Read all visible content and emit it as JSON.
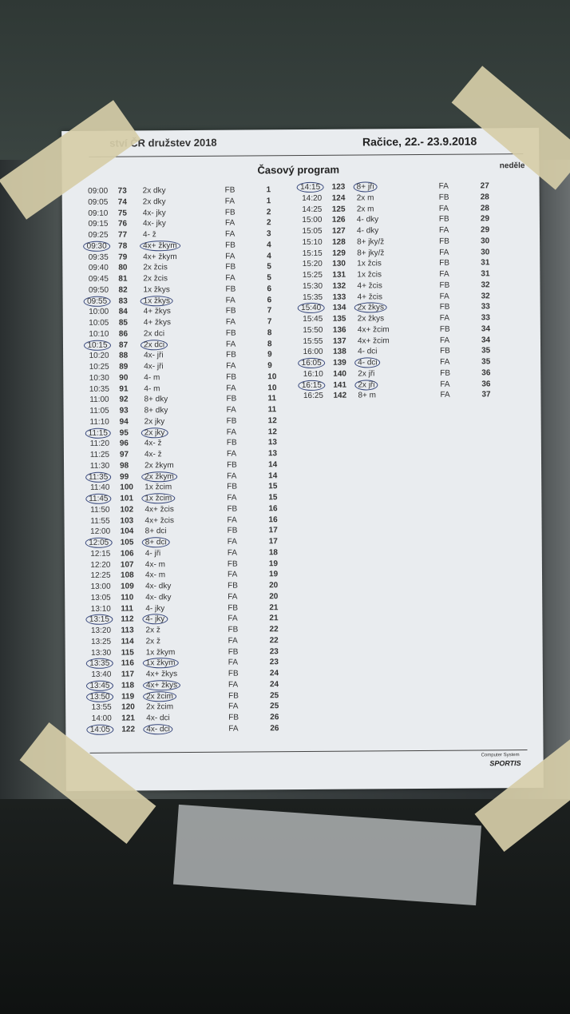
{
  "header": {
    "event": "ství ČR družstev 2018",
    "place_date": "Račice,  22.- 23.9.2018",
    "title": "Časový program",
    "day": "neděle"
  },
  "footer": {
    "system": "Computer System",
    "logo": "SPORTIS"
  },
  "left_rows": [
    {
      "time": "09:00",
      "no": "73",
      "cat": "2x dky",
      "lane": "FB",
      "race": "1",
      "circled": false
    },
    {
      "time": "09:05",
      "no": "74",
      "cat": "2x dky",
      "lane": "FA",
      "race": "1",
      "circled": false
    },
    {
      "time": "09:10",
      "no": "75",
      "cat": "4x- jky",
      "lane": "FB",
      "race": "2",
      "circled": false
    },
    {
      "time": "09:15",
      "no": "76",
      "cat": "4x- jky",
      "lane": "FA",
      "race": "2",
      "circled": false
    },
    {
      "time": "09:25",
      "no": "77",
      "cat": "4- ž",
      "lane": "FA",
      "race": "3",
      "circled": false
    },
    {
      "time": "09:30",
      "no": "78",
      "cat": "4x+ žkym",
      "lane": "FB",
      "race": "4",
      "circled": true
    },
    {
      "time": "09:35",
      "no": "79",
      "cat": "4x+ žkym",
      "lane": "FA",
      "race": "4",
      "circled": false
    },
    {
      "time": "09:40",
      "no": "80",
      "cat": "2x žcis",
      "lane": "FB",
      "race": "5",
      "circled": false
    },
    {
      "time": "09:45",
      "no": "81",
      "cat": "2x žcis",
      "lane": "FA",
      "race": "5",
      "circled": false
    },
    {
      "time": "09:50",
      "no": "82",
      "cat": "1x žkys",
      "lane": "FB",
      "race": "6",
      "circled": false
    },
    {
      "time": "09:55",
      "no": "83",
      "cat": "1x žkys",
      "lane": "FA",
      "race": "6",
      "circled": true
    },
    {
      "time": "10:00",
      "no": "84",
      "cat": "4+ žkys",
      "lane": "FB",
      "race": "7",
      "circled": false
    },
    {
      "time": "10:05",
      "no": "85",
      "cat": "4+ žkys",
      "lane": "FA",
      "race": "7",
      "circled": false
    },
    {
      "time": "10:10",
      "no": "86",
      "cat": "2x dci",
      "lane": "FB",
      "race": "8",
      "circled": false
    },
    {
      "time": "10:15",
      "no": "87",
      "cat": "2x dci",
      "lane": "FA",
      "race": "8",
      "circled": true
    },
    {
      "time": "10:20",
      "no": "88",
      "cat": "4x- jři",
      "lane": "FB",
      "race": "9",
      "circled": false
    },
    {
      "time": "10:25",
      "no": "89",
      "cat": "4x- jři",
      "lane": "FA",
      "race": "9",
      "circled": false
    },
    {
      "time": "10:30",
      "no": "90",
      "cat": "4- m",
      "lane": "FB",
      "race": "10",
      "circled": false
    },
    {
      "time": "10:35",
      "no": "91",
      "cat": "4- m",
      "lane": "FA",
      "race": "10",
      "circled": false
    },
    {
      "time": "11:00",
      "no": "92",
      "cat": "8+ dky",
      "lane": "FB",
      "race": "11",
      "circled": false
    },
    {
      "time": "11:05",
      "no": "93",
      "cat": "8+ dky",
      "lane": "FA",
      "race": "11",
      "circled": false
    },
    {
      "time": "11:10",
      "no": "94",
      "cat": "2x jky",
      "lane": "FB",
      "race": "12",
      "circled": false
    },
    {
      "time": "11:15",
      "no": "95",
      "cat": "2x jky",
      "lane": "FA",
      "race": "12",
      "circled": true
    },
    {
      "time": "11:20",
      "no": "96",
      "cat": "4x- ž",
      "lane": "FB",
      "race": "13",
      "circled": false
    },
    {
      "time": "11:25",
      "no": "97",
      "cat": "4x- ž",
      "lane": "FA",
      "race": "13",
      "circled": false
    },
    {
      "time": "11:30",
      "no": "98",
      "cat": "2x žkym",
      "lane": "FB",
      "race": "14",
      "circled": false
    },
    {
      "time": "11:35",
      "no": "99",
      "cat": "2x žkym",
      "lane": "FA",
      "race": "14",
      "circled": true
    },
    {
      "time": "11:40",
      "no": "100",
      "cat": "1x žcim",
      "lane": "FB",
      "race": "15",
      "circled": false
    },
    {
      "time": "11:45",
      "no": "101",
      "cat": "1x žcim",
      "lane": "FA",
      "race": "15",
      "circled": true
    },
    {
      "time": "11:50",
      "no": "102",
      "cat": "4x+ žcis",
      "lane": "FB",
      "race": "16",
      "circled": false
    },
    {
      "time": "11:55",
      "no": "103",
      "cat": "4x+ žcis",
      "lane": "FA",
      "race": "16",
      "circled": false
    },
    {
      "time": "12:00",
      "no": "104",
      "cat": "8+ dci",
      "lane": "FB",
      "race": "17",
      "circled": false
    },
    {
      "time": "12:05",
      "no": "105",
      "cat": "8+ dci",
      "lane": "FA",
      "race": "17",
      "circled": true
    },
    {
      "time": "12:15",
      "no": "106",
      "cat": "4- jři",
      "lane": "FA",
      "race": "18",
      "circled": false
    },
    {
      "time": "12:20",
      "no": "107",
      "cat": "4x- m",
      "lane": "FB",
      "race": "19",
      "circled": false
    },
    {
      "time": "12:25",
      "no": "108",
      "cat": "4x- m",
      "lane": "FA",
      "race": "19",
      "circled": false
    },
    {
      "time": "13:00",
      "no": "109",
      "cat": "4x- dky",
      "lane": "FB",
      "race": "20",
      "circled": false
    },
    {
      "time": "13:05",
      "no": "110",
      "cat": "4x- dky",
      "lane": "FA",
      "race": "20",
      "circled": false
    },
    {
      "time": "13:10",
      "no": "111",
      "cat": "4- jky",
      "lane": "FB",
      "race": "21",
      "circled": false
    },
    {
      "time": "13:15",
      "no": "112",
      "cat": "4- jky",
      "lane": "FA",
      "race": "21",
      "circled": true
    },
    {
      "time": "13:20",
      "no": "113",
      "cat": "2x ž",
      "lane": "FB",
      "race": "22",
      "circled": false
    },
    {
      "time": "13:25",
      "no": "114",
      "cat": "2x ž",
      "lane": "FA",
      "race": "22",
      "circled": false
    },
    {
      "time": "13:30",
      "no": "115",
      "cat": "1x žkym",
      "lane": "FB",
      "race": "23",
      "circled": false
    },
    {
      "time": "13:35",
      "no": "116",
      "cat": "1x žkym",
      "lane": "FA",
      "race": "23",
      "circled": true
    },
    {
      "time": "13:40",
      "no": "117",
      "cat": "4x+ žkys",
      "lane": "FB",
      "race": "24",
      "circled": false
    },
    {
      "time": "13:45",
      "no": "118",
      "cat": "4x+ žkys",
      "lane": "FA",
      "race": "24",
      "circled": true
    },
    {
      "time": "13:50",
      "no": "119",
      "cat": "2x žcim",
      "lane": "FB",
      "race": "25",
      "circled": true
    },
    {
      "time": "13:55",
      "no": "120",
      "cat": "2x žcim",
      "lane": "FA",
      "race": "25",
      "circled": false
    },
    {
      "time": "14:00",
      "no": "121",
      "cat": "4x- dci",
      "lane": "FB",
      "race": "26",
      "circled": false
    },
    {
      "time": "14:05",
      "no": "122",
      "cat": "4x- dci",
      "lane": "FA",
      "race": "26",
      "circled": true
    }
  ],
  "right_rows": [
    {
      "time": "14:15",
      "no": "123",
      "cat": "8+ jři",
      "lane": "FA",
      "race": "27",
      "circled": true
    },
    {
      "time": "14:20",
      "no": "124",
      "cat": "2x m",
      "lane": "FB",
      "race": "28",
      "circled": false
    },
    {
      "time": "14:25",
      "no": "125",
      "cat": "2x m",
      "lane": "FA",
      "race": "28",
      "circled": false
    },
    {
      "time": "15:00",
      "no": "126",
      "cat": "4- dky",
      "lane": "FB",
      "race": "29",
      "circled": false
    },
    {
      "time": "15:05",
      "no": "127",
      "cat": "4- dky",
      "lane": "FA",
      "race": "29",
      "circled": false
    },
    {
      "time": "15:10",
      "no": "128",
      "cat": "8+ jky/ž",
      "lane": "FB",
      "race": "30",
      "circled": false
    },
    {
      "time": "15:15",
      "no": "129",
      "cat": "8+ jky/ž",
      "lane": "FA",
      "race": "30",
      "circled": false
    },
    {
      "time": "15:20",
      "no": "130",
      "cat": "1x žcis",
      "lane": "FB",
      "race": "31",
      "circled": false
    },
    {
      "time": "15:25",
      "no": "131",
      "cat": "1x žcis",
      "lane": "FA",
      "race": "31",
      "circled": false
    },
    {
      "time": "15:30",
      "no": "132",
      "cat": "4+ žcis",
      "lane": "FB",
      "race": "32",
      "circled": false
    },
    {
      "time": "15:35",
      "no": "133",
      "cat": "4+ žcis",
      "lane": "FA",
      "race": "32",
      "circled": false
    },
    {
      "time": "15:40",
      "no": "134",
      "cat": "2x žkys",
      "lane": "FB",
      "race": "33",
      "circled": true
    },
    {
      "time": "15:45",
      "no": "135",
      "cat": "2x žkys",
      "lane": "FA",
      "race": "33",
      "circled": false
    },
    {
      "time": "15:50",
      "no": "136",
      "cat": "4x+ žcim",
      "lane": "FB",
      "race": "34",
      "circled": false
    },
    {
      "time": "15:55",
      "no": "137",
      "cat": "4x+ žcim",
      "lane": "FA",
      "race": "34",
      "circled": false
    },
    {
      "time": "16:00",
      "no": "138",
      "cat": "4- dci",
      "lane": "FB",
      "race": "35",
      "circled": false
    },
    {
      "time": "16:05",
      "no": "139",
      "cat": "4- dci",
      "lane": "FA",
      "race": "35",
      "circled": true
    },
    {
      "time": "16:10",
      "no": "140",
      "cat": "2x jři",
      "lane": "FB",
      "race": "36",
      "circled": false
    },
    {
      "time": "16:15",
      "no": "141",
      "cat": "2x jři",
      "lane": "FA",
      "race": "36",
      "circled": true
    },
    {
      "time": "16:25",
      "no": "142",
      "cat": "8+ m",
      "lane": "FA",
      "race": "37",
      "circled": false
    }
  ]
}
